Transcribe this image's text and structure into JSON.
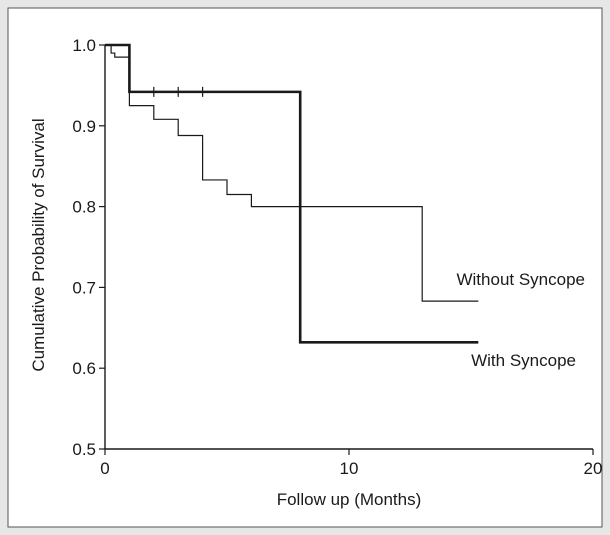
{
  "chart_data": {
    "type": "line",
    "title": "",
    "xlabel": "Follow up (Months)",
    "ylabel": "Cumulative Probability of Survival",
    "xlim": [
      0,
      20
    ],
    "ylim": [
      0.5,
      1.0
    ],
    "x_ticks": [
      "0",
      "10",
      "20"
    ],
    "y_ticks": [
      "0.5",
      "0.6",
      "0.7",
      "0.8",
      "0.9",
      "1.0"
    ],
    "grid": false,
    "series": [
      {
        "name": "Without Syncope",
        "step": true,
        "x": [
          0,
          0.25,
          0.4,
          1.0,
          2.0,
          3.0,
          4.0,
          5.0,
          6.0,
          13.0,
          15.3
        ],
        "y": [
          1.0,
          0.99,
          0.985,
          0.925,
          0.908,
          0.888,
          0.833,
          0.815,
          0.8,
          0.683,
          0.683
        ],
        "censored_x": []
      },
      {
        "name": "With Syncope",
        "step": true,
        "x": [
          0,
          1.0,
          8.0,
          15.3
        ],
        "y": [
          1.0,
          0.942,
          0.632,
          0.632
        ],
        "censored_x": [
          2.0,
          3.0,
          4.0
        ]
      }
    ],
    "colors": {
      "without": "#1a1a1a",
      "with": "#1a1a1a"
    }
  }
}
